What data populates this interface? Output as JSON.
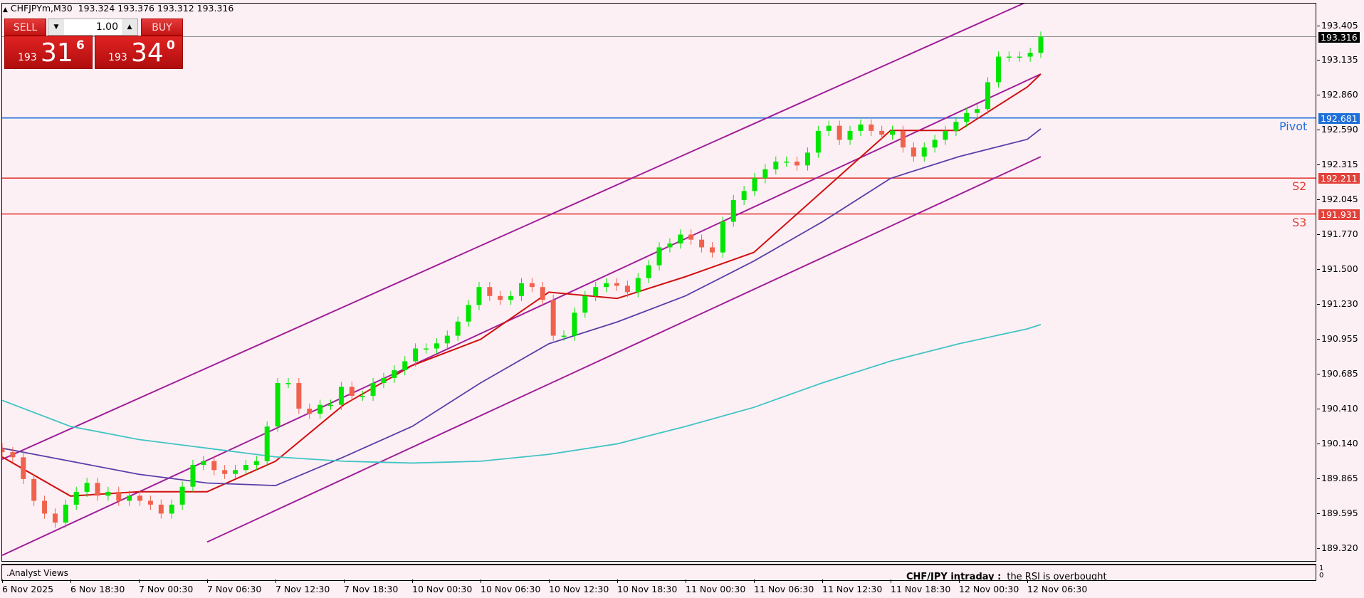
{
  "header": {
    "symbol": "CHFJPYm,M30",
    "ohlc": "193.324 193.376 193.312 193.316",
    "icon": "triangle-up-icon"
  },
  "trade_panel": {
    "sell_label": "SELL",
    "buy_label": "BUY",
    "volume": "1.00",
    "sell_price": {
      "big_figure": "193",
      "pips": "31",
      "fraction": "6"
    },
    "buy_price": {
      "big_figure": "193",
      "pips": "34",
      "fraction": "0"
    }
  },
  "subwindow": {
    "name": ".Analyst Views",
    "title": "CHF/JPY intraday :",
    "message": "the RSI is overbought",
    "scale_max": "1",
    "scale_min": "0"
  },
  "colors": {
    "background": "#fdf0f4",
    "bull": "#00e600",
    "bear": "#f0624d",
    "pivot": "#1e6fd9",
    "support": "#e2413a",
    "ma_fast": "#d01010",
    "ma_mid": "#5a3fa8",
    "ma_slow": "#40c4c4",
    "channel": "#a0209a"
  },
  "chart_data": {
    "type": "candlestick",
    "title": "",
    "ylim": [
      189.2,
      193.57
    ],
    "y_ticks": [
      "193.405",
      "193.135",
      "192.860",
      "192.590",
      "192.315",
      "192.045",
      "191.770",
      "191.500",
      "191.230",
      "190.955",
      "190.685",
      "190.410",
      "190.140",
      "189.865",
      "189.595",
      "189.320"
    ],
    "x_ticks": [
      "6 Nov 2025",
      "6 Nov 18:30",
      "7 Nov 00:30",
      "7 Nov 06:30",
      "7 Nov 12:30",
      "7 Nov 18:30",
      "10 Nov 00:30",
      "10 Nov 06:30",
      "10 Nov 12:30",
      "10 Nov 18:30",
      "11 Nov 00:30",
      "11 Nov 06:30",
      "11 Nov 12:30",
      "11 Nov 18:30",
      "12 Nov 00:30",
      "12 Nov 06:30"
    ],
    "first_open": 190.1,
    "closes": [
      190.07,
      190.03,
      189.86,
      189.69,
      189.59,
      189.52,
      189.66,
      189.76,
      189.83,
      189.73,
      189.76,
      189.69,
      189.73,
      189.69,
      189.66,
      189.59,
      189.66,
      189.8,
      189.97,
      190.0,
      189.93,
      189.9,
      189.93,
      189.97,
      190.0,
      190.27,
      190.61,
      190.61,
      190.41,
      190.37,
      190.44,
      190.44,
      190.58,
      190.51,
      190.51,
      190.61,
      190.65,
      190.71,
      190.78,
      190.88,
      190.88,
      190.92,
      190.98,
      191.09,
      191.22,
      191.36,
      191.29,
      191.26,
      191.29,
      191.39,
      191.36,
      191.26,
      190.98,
      190.98,
      191.16,
      191.29,
      191.36,
      191.39,
      191.37,
      191.32,
      191.43,
      191.53,
      191.67,
      191.7,
      191.77,
      191.73,
      191.67,
      191.63,
      191.87,
      192.04,
      192.11,
      192.21,
      192.28,
      192.34,
      192.34,
      192.31,
      192.41,
      192.58,
      192.62,
      192.51,
      192.58,
      192.63,
      192.58,
      192.55,
      192.58,
      192.45,
      192.38,
      192.45,
      192.51,
      192.58,
      192.65,
      192.72,
      192.75,
      192.96,
      193.16,
      193.16,
      193.16,
      193.19,
      193.316
    ],
    "moving_averages": [
      {
        "id": "fast",
        "values_at_ticks": [
          190.033,
          189.727,
          189.761,
          189.761,
          189.999,
          190.441,
          190.747,
          190.951,
          191.32,
          191.271,
          191.441,
          191.631,
          192.107,
          192.583,
          192.583,
          192.923
        ],
        "last": 193.024
      },
      {
        "id": "mid",
        "values_at_ticks": [
          190.101,
          189.999,
          189.897,
          189.829,
          189.809,
          190.033,
          190.271,
          190.611,
          190.917,
          191.087,
          191.291,
          191.563,
          191.869,
          192.209,
          192.379,
          192.514
        ],
        "last": 192.596
      },
      {
        "id": "slow",
        "values_at_ticks": [
          190.475,
          190.271,
          190.169,
          190.101,
          190.033,
          189.999,
          189.985,
          189.999,
          190.053,
          190.135,
          190.271,
          190.42,
          190.611,
          190.781,
          190.917,
          191.033
        ],
        "last": 191.067
      }
    ],
    "channel": [
      {
        "id": "upper",
        "from": {
          "t": "6 Nov 2025",
          "price": 190.014
        },
        "to": {
          "t": "12 Nov 06:30",
          "price": 193.589
        }
      },
      {
        "id": "middle",
        "from": {
          "t": "6 Nov 2025",
          "price": 189.264
        },
        "to": {
          "t": "last",
          "price": 193.024
        }
      },
      {
        "id": "lower",
        "from": {
          "t": "7 Nov 06:30",
          "price": 189.368
        },
        "to": {
          "t": "last",
          "price": 192.378
        }
      }
    ],
    "levels": [
      {
        "name": "Pivot",
        "price": "192.681",
        "color": "#1e6fd9"
      },
      {
        "name": "S2",
        "price": "192.211",
        "color": "#e2413a"
      },
      {
        "name": "S3",
        "price": "191.931",
        "color": "#e2413a"
      }
    ],
    "current_price": "193.316"
  }
}
